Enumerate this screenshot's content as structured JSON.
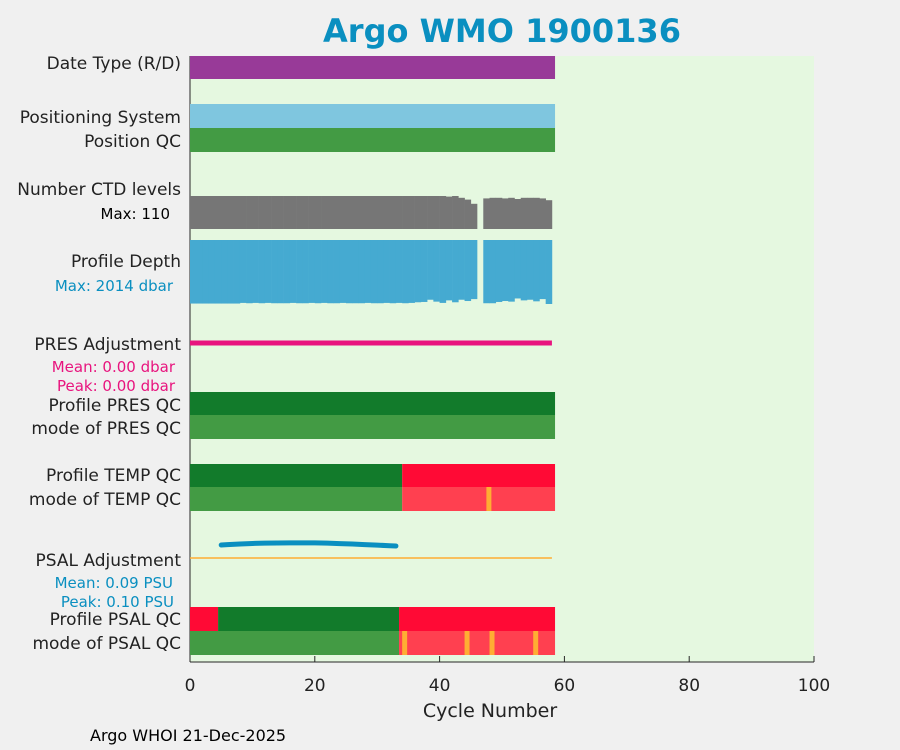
{
  "title": "Argo WMO 1900136",
  "footer": "Argo WHOI 21-Dec-2025",
  "colors": {
    "background": "#e5f8e0",
    "date_type": "#983a98",
    "positioning": "#7fc6df",
    "qc_good_dark": "#127b2b",
    "qc_good": "#439b44",
    "qc_bad": "#ff0a35",
    "qc_bad_light": "#ff4050",
    "qc_orange": "#ffad33",
    "ctd_levels": "#767676",
    "profile_depth": "#45aad1",
    "pres_adjustment": "#e8147e",
    "psal_adjustment": "#0a8fc0",
    "psal_line": "#ffad33",
    "title": "#0a8fc0"
  },
  "chart_data": {
    "type": "bar",
    "xlabel": "Cycle Number",
    "xlim": [
      0,
      100
    ],
    "xticks": [
      0,
      20,
      40,
      60,
      80,
      100
    ],
    "rows": {
      "date_type": {
        "label": "Date Type (R/D)",
        "cycles": [
          0,
          58
        ],
        "value": "R"
      },
      "positioning": {
        "label": "Positioning System",
        "cycles": [
          0,
          58
        ]
      },
      "position_qc": {
        "label": "Position QC",
        "cycles": [
          0,
          58
        ],
        "qc": "1"
      },
      "ctd_levels": {
        "label": "Number CTD levels",
        "max_label": "Max: 110",
        "max": 110
      },
      "profile_depth": {
        "label": "Profile Depth",
        "max_label": "Max: 2014 dbar",
        "max": 2014
      },
      "pres_adjustment": {
        "label": "PRES Adjustment",
        "mean_label": "Mean: 0.00 dbar",
        "peak_label": "Peak: 0.00 dbar",
        "cycles": [
          0,
          58
        ]
      },
      "profile_pres_qc": {
        "label": "Profile PRES QC",
        "segments": [
          {
            "from": 0,
            "to": 58,
            "qc": "A"
          }
        ]
      },
      "mode_pres_qc": {
        "label": "mode of PRES QC",
        "segments": [
          {
            "from": 0,
            "to": 58,
            "qc": "1"
          }
        ]
      },
      "profile_temp_qc": {
        "label": "Profile TEMP QC",
        "segments": [
          {
            "from": 0,
            "to": 34,
            "qc": "A"
          },
          {
            "from": 34,
            "to": 58,
            "qc": "F"
          }
        ]
      },
      "mode_temp_qc": {
        "label": "mode of TEMP QC",
        "segments": [
          {
            "from": 0,
            "to": 34,
            "qc": "1"
          },
          {
            "from": 34,
            "to": 58,
            "qc": "4"
          }
        ],
        "flags": [
          47.5
        ]
      },
      "psal_adjustment": {
        "label": "PSAL Adjustment",
        "mean_label": "Mean: 0.09 PSU",
        "peak_label": "Peak: 0.10 PSU"
      },
      "profile_psal_qc": {
        "label": "Profile PSAL QC",
        "segments": [
          {
            "from": 0,
            "to": 4.5,
            "qc": "F"
          },
          {
            "from": 4.5,
            "to": 33.5,
            "qc": "A"
          },
          {
            "from": 33.5,
            "to": 58,
            "qc": "F"
          }
        ]
      },
      "mode_psal_qc": {
        "label": "mode of PSAL QC",
        "segments": [
          {
            "from": 0,
            "to": 33.5,
            "qc": "1"
          },
          {
            "from": 33.5,
            "to": 58,
            "qc": "4"
          }
        ],
        "flags": [
          34,
          44,
          48,
          55
        ]
      }
    },
    "ctd_levels_values": [
      [
        0,
        110
      ],
      [
        1,
        110
      ],
      [
        2,
        110
      ],
      [
        3,
        110
      ],
      [
        4,
        110
      ],
      [
        5,
        110
      ],
      [
        6,
        110
      ],
      [
        7,
        110
      ],
      [
        8,
        110
      ],
      [
        9,
        110
      ],
      [
        10,
        110
      ],
      [
        11,
        110
      ],
      [
        12,
        110
      ],
      [
        13,
        110
      ],
      [
        14,
        110
      ],
      [
        15,
        110
      ],
      [
        16,
        110
      ],
      [
        17,
        110
      ],
      [
        18,
        110
      ],
      [
        19,
        110
      ],
      [
        20,
        110
      ],
      [
        21,
        110
      ],
      [
        22,
        110
      ],
      [
        23,
        110
      ],
      [
        24,
        110
      ],
      [
        25,
        110
      ],
      [
        26,
        110
      ],
      [
        27,
        110
      ],
      [
        28,
        110
      ],
      [
        29,
        110
      ],
      [
        30,
        110
      ],
      [
        31,
        110
      ],
      [
        32,
        110
      ],
      [
        33,
        110
      ],
      [
        34,
        110
      ],
      [
        35,
        110
      ],
      [
        36,
        110
      ],
      [
        37,
        110
      ],
      [
        38,
        110
      ],
      [
        39,
        110
      ],
      [
        40,
        110
      ],
      [
        41,
        108
      ],
      [
        42,
        110
      ],
      [
        43,
        104
      ],
      [
        44,
        98
      ],
      [
        45,
        84
      ],
      [
        46,
        0
      ],
      [
        47,
        102
      ],
      [
        48,
        104
      ],
      [
        49,
        104
      ],
      [
        50,
        102
      ],
      [
        51,
        104
      ],
      [
        52,
        100
      ],
      [
        53,
        104
      ],
      [
        54,
        104
      ],
      [
        55,
        104
      ],
      [
        56,
        102
      ],
      [
        57,
        96
      ]
    ],
    "profile_depth_values": [
      [
        0,
        2000
      ],
      [
        1,
        2000
      ],
      [
        2,
        2000
      ],
      [
        3,
        2000
      ],
      [
        4,
        2000
      ],
      [
        5,
        2000
      ],
      [
        6,
        2000
      ],
      [
        7,
        2000
      ],
      [
        8,
        1980
      ],
      [
        9,
        1990
      ],
      [
        10,
        1980
      ],
      [
        11,
        1990
      ],
      [
        12,
        1980
      ],
      [
        13,
        1990
      ],
      [
        14,
        1990
      ],
      [
        15,
        1990
      ],
      [
        16,
        1980
      ],
      [
        17,
        1990
      ],
      [
        18,
        1990
      ],
      [
        19,
        1980
      ],
      [
        20,
        1990
      ],
      [
        21,
        1980
      ],
      [
        22,
        1990
      ],
      [
        23,
        1990
      ],
      [
        24,
        1980
      ],
      [
        25,
        1990
      ],
      [
        26,
        1990
      ],
      [
        27,
        1990
      ],
      [
        28,
        1980
      ],
      [
        29,
        1990
      ],
      [
        30,
        1990
      ],
      [
        31,
        1980
      ],
      [
        32,
        1990
      ],
      [
        33,
        1980
      ],
      [
        34,
        1990
      ],
      [
        35,
        1980
      ],
      [
        36,
        1960
      ],
      [
        37,
        1950
      ],
      [
        38,
        1880
      ],
      [
        39,
        1940
      ],
      [
        40,
        1980
      ],
      [
        41,
        1900
      ],
      [
        42,
        1960
      ],
      [
        43,
        1880
      ],
      [
        44,
        1920
      ],
      [
        45,
        1860
      ],
      [
        46,
        0
      ],
      [
        47,
        1990
      ],
      [
        48,
        1990
      ],
      [
        49,
        1950
      ],
      [
        50,
        1920
      ],
      [
        51,
        1940
      ],
      [
        52,
        1840
      ],
      [
        53,
        1900
      ],
      [
        54,
        1880
      ],
      [
        55,
        1930
      ],
      [
        56,
        1860
      ],
      [
        57,
        2014
      ]
    ],
    "psal_adjustment_values": [
      [
        5,
        0.085
      ],
      [
        6,
        0.088
      ],
      [
        8,
        0.092
      ],
      [
        10,
        0.096
      ],
      [
        12,
        0.098
      ],
      [
        14,
        0.099
      ],
      [
        16,
        0.1
      ],
      [
        18,
        0.1
      ],
      [
        20,
        0.1
      ],
      [
        22,
        0.098
      ],
      [
        24,
        0.095
      ],
      [
        26,
        0.092
      ],
      [
        28,
        0.088
      ],
      [
        30,
        0.084
      ],
      [
        32,
        0.08
      ],
      [
        33,
        0.078
      ]
    ]
  }
}
